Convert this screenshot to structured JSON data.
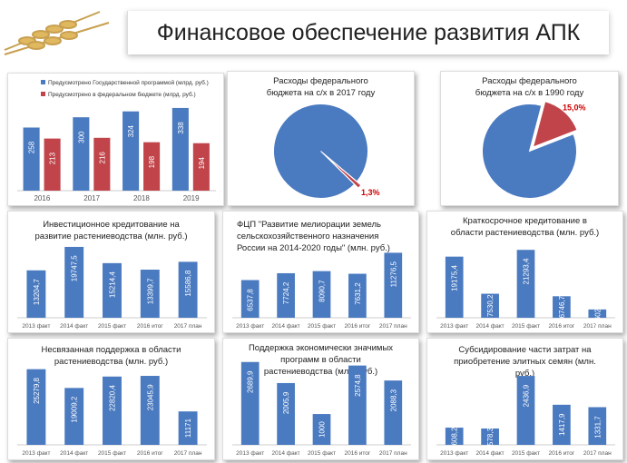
{
  "header": {
    "title": "Финансовое обеспечение развития АПК"
  },
  "colors": {
    "blue": "#4a7ac0",
    "red": "#c0444a"
  },
  "chart_data": [
    {
      "id": "c1",
      "type": "bar",
      "title": "",
      "categories": [
        "2016",
        "2017",
        "2018",
        "2019"
      ],
      "series": [
        {
          "name": "Предусмотрено Государственной программой (млрд. руб.)",
          "values": [
            258,
            300,
            324,
            338
          ]
        },
        {
          "name": "Предусмотрено в федеральном бюджете (млрд. руб.)",
          "values": [
            213,
            216,
            198,
            194
          ]
        }
      ],
      "ylim": [
        0,
        360
      ]
    },
    {
      "id": "p1",
      "type": "pie",
      "title": "Расходы федерального бюджета на с/х в 2017 году",
      "slices": [
        {
          "label": "",
          "value": 98.7
        },
        {
          "label": "1,3%",
          "value": 1.3
        }
      ]
    },
    {
      "id": "p2",
      "type": "pie",
      "title": "Расходы федерального бюджета на с/х в 1990 году",
      "slices": [
        {
          "label": "",
          "value": 85.0
        },
        {
          "label": "15,0%",
          "value": 15.0
        }
      ]
    },
    {
      "id": "c2",
      "type": "bar",
      "title": "Инвестиционное кредитование на развитие растениеводства (млн. руб.)",
      "categories": [
        "2013 факт",
        "2014 факт",
        "2015 факт",
        "2016 итог",
        "2017 план"
      ],
      "series": [
        {
          "name": "",
          "values": [
            13204.7,
            19747.5,
            15214.4,
            13399.7,
            15586.8
          ],
          "labels": [
            "13204,7",
            "19747,5",
            "15214,4",
            "13399,7",
            "15586,8"
          ]
        }
      ],
      "ylim": [
        0,
        21000
      ]
    },
    {
      "id": "c3",
      "type": "bar",
      "title": "ФЦП \"Развитие мелиорации земель сельскохозяйственного назначения России на 2014-2020 годы\" (млн. руб.)",
      "categories": [
        "2013 факт",
        "2014 факт",
        "2015 факт",
        "2016 итог",
        "2017 план"
      ],
      "series": [
        {
          "name": "",
          "values": [
            6537.8,
            7724.2,
            8090.7,
            7631.2,
            11276.5
          ],
          "labels": [
            "6537,8",
            "7724,2",
            "8090,7",
            "7631,2",
            "11276,5"
          ]
        }
      ],
      "ylim": [
        0,
        11500
      ]
    },
    {
      "id": "c4",
      "type": "bar",
      "title": "Краткосрочное кредитование в области растениеводства (млн. руб.)",
      "categories": [
        "2013 факт",
        "2014 факт",
        "2015 факт",
        "2016 итог",
        "2017 план"
      ],
      "series": [
        {
          "name": "",
          "values": [
            19175.4,
            7530.2,
            21293.4,
            6746.7,
            2602.9
          ],
          "labels": [
            "19175,4",
            "7530,2",
            "21293,4",
            "6746,7",
            "2602,9"
          ]
        }
      ],
      "ylim": [
        0,
        22500
      ]
    },
    {
      "id": "c5",
      "type": "bar",
      "title": "Несвязанная поддержка в области растениеводства (млн. руб.)",
      "categories": [
        "2013 факт",
        "2014 факт",
        "2015 факт",
        "2016 итог",
        "2017 план"
      ],
      "series": [
        {
          "name": "",
          "values": [
            25279.8,
            19009.2,
            22820.4,
            23045.9,
            11171
          ],
          "labels": [
            "25279,8",
            "19009,2",
            "22820,4",
            "23045,9",
            "11171"
          ]
        }
      ],
      "ylim": [
        0,
        27000
      ]
    },
    {
      "id": "c6",
      "type": "bar",
      "title": "Поддержка экономически значимых программ в области растениеводства (млн. руб.)",
      "categories": [
        "2013 факт",
        "2014 факт",
        "2015 факт",
        "2016 итог",
        "2017 план"
      ],
      "series": [
        {
          "name": "",
          "values": [
            2689.9,
            2005.9,
            1000,
            2574.8,
            2088.3
          ],
          "labels": [
            "2689,9",
            "2005,9",
            "1000",
            "2574,8",
            "2088,3"
          ]
        }
      ],
      "ylim": [
        0,
        2800
      ]
    },
    {
      "id": "c7",
      "type": "bar",
      "title": "Субсидирование части затрат на приобретение элитных семян (млн. руб.)",
      "categories": [
        "2013 факт",
        "2014 факт",
        "2015 факт",
        "2016 итог",
        "2017 план"
      ],
      "series": [
        {
          "name": "",
          "values": [
            608.2,
            578.3,
            2436.9,
            1417.9,
            1331.7
          ],
          "labels": [
            "608,2",
            "578,3",
            "2436,9",
            "1417,9",
            "1331,7"
          ]
        }
      ],
      "ylim": [
        0,
        2600
      ]
    }
  ]
}
